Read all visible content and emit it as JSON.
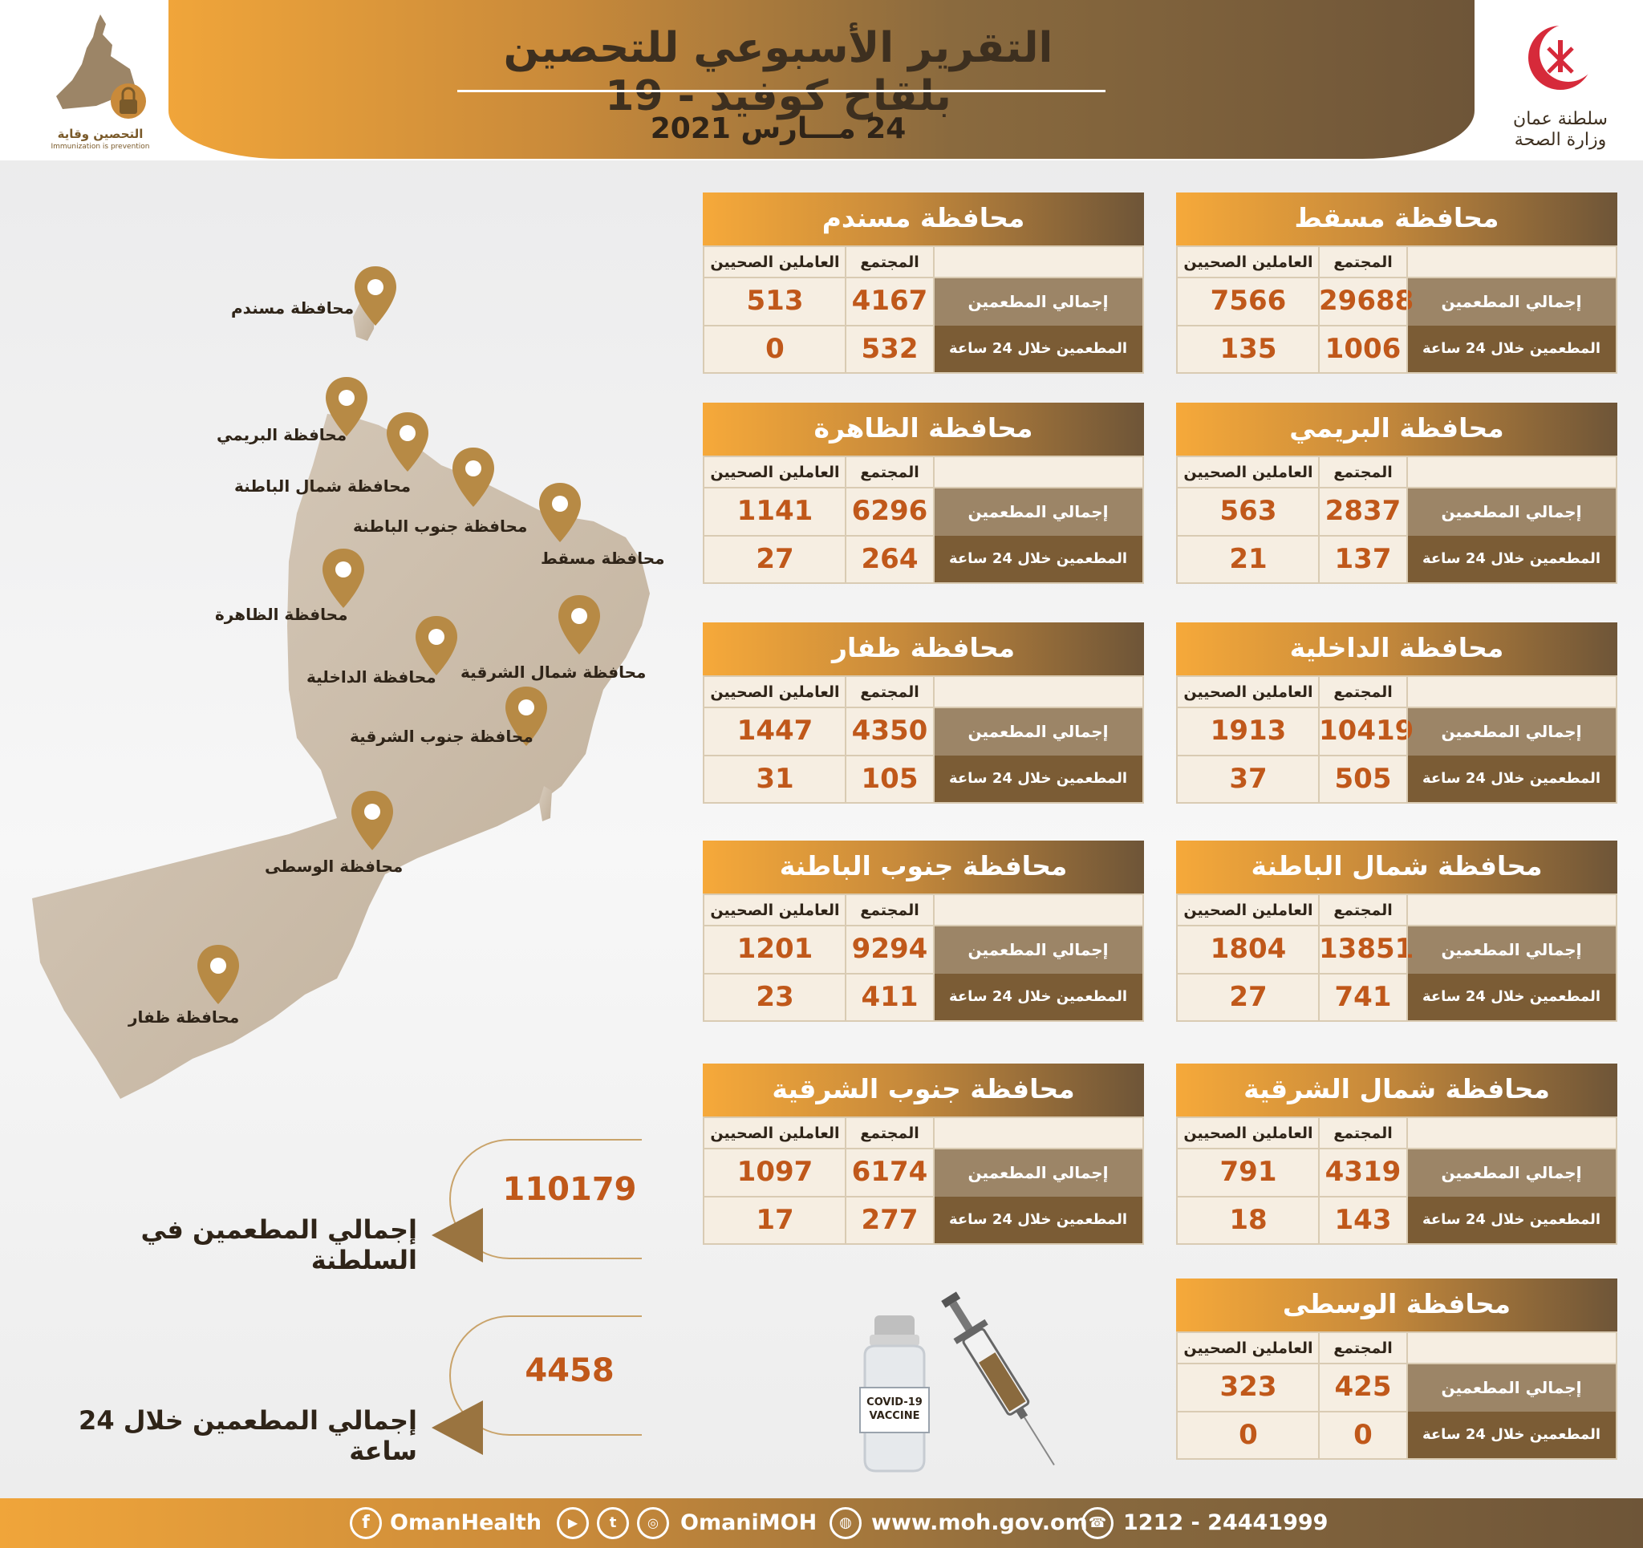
{
  "header": {
    "title": "التقرير الأسبوعي للتحصين بلقاح كوفيد - 19",
    "date": "24 مـــارس 2021",
    "left_logo_text": "التحصين وقاية",
    "left_logo_subtext": "Immunization is prevention",
    "right_logo_text_1": "سلطنة عمان",
    "right_logo_text_2": "وزارة الصحة"
  },
  "map": {
    "labels": {
      "musandam": "محافظة مسندم",
      "buraimi": "محافظة البريمي",
      "north_batinah": "محافظة شمال الباطنة",
      "south_batinah": "محافظة جنوب الباطنة",
      "muscat": "محافظة مسقط",
      "dhahirah": "محافظة الظاهرة",
      "dakhiliyah": "محافظة الداخلية",
      "north_sharqiyah": "محافظة شمال الشرقية",
      "south_sharqiyah": "محافظة جنوب الشرقية",
      "wusta": "محافظة الوسطى",
      "dhofar": "محافظة ظفار"
    }
  },
  "table_labels": {
    "col_community": "المجتمع",
    "col_health_workers": "العاملين الصحيين",
    "row_total": "إجمالي المطعمين",
    "row_24h": "المطعمين خلال 24 ساعة"
  },
  "governorates": {
    "muscat": {
      "name": "محافظة مسقط",
      "total_community": "29688",
      "total_health": "7566",
      "day_community": "1006",
      "day_health": "135"
    },
    "musandam": {
      "name": "محافظة مسندم",
      "total_community": "4167",
      "total_health": "513",
      "day_community": "532",
      "day_health": "0"
    },
    "buraimi": {
      "name": "محافظة البريمي",
      "total_community": "2837",
      "total_health": "563",
      "day_community": "137",
      "day_health": "21"
    },
    "dhahirah": {
      "name": "محافظة الظاهرة",
      "total_community": "6296",
      "total_health": "1141",
      "day_community": "264",
      "day_health": "27"
    },
    "dakhiliyah": {
      "name": "محافظة الداخلية",
      "total_community": "10419",
      "total_health": "1913",
      "day_community": "505",
      "day_health": "37"
    },
    "dhofar": {
      "name": "محافظة ظفار",
      "total_community": "4350",
      "total_health": "1447",
      "day_community": "105",
      "day_health": "31"
    },
    "north_batinah": {
      "name": "محافظة شمال الباطنة",
      "total_community": "13851",
      "total_health": "1804",
      "day_community": "741",
      "day_health": "27"
    },
    "south_batinah": {
      "name": "محافظة جنوب الباطنة",
      "total_community": "9294",
      "total_health": "1201",
      "day_community": "411",
      "day_health": "23"
    },
    "north_sharqiyah": {
      "name": "محافظة شمال الشرقية",
      "total_community": "4319",
      "total_health": "791",
      "day_community": "143",
      "day_health": "18"
    },
    "south_sharqiyah": {
      "name": "محافظة جنوب الشرقية",
      "total_community": "6174",
      "total_health": "1097",
      "day_community": "277",
      "day_health": "17"
    },
    "wusta": {
      "name": "محافظة الوسطى",
      "total_community": "425",
      "total_health": "323",
      "day_community": "0",
      "day_health": "0"
    }
  },
  "totals": {
    "sultanate_label": "إجمالي المطعمين في السلطنة",
    "sultanate_value": "110179",
    "day_label": "إجمالي المطعمين خلال 24 ساعة",
    "day_value": "4458"
  },
  "vaccine_label": {
    "line1": "COVID-19",
    "line2": "VACCINE"
  },
  "footer": {
    "facebook": "OmanHealth",
    "social": "OmaniMOH",
    "website": "www.moh.gov.om",
    "phone": "1212 - 24441999"
  },
  "colors": {
    "accent_orange": "#f6a93a",
    "brand_brown": "#6e5538",
    "value_orange": "#c0581a"
  }
}
